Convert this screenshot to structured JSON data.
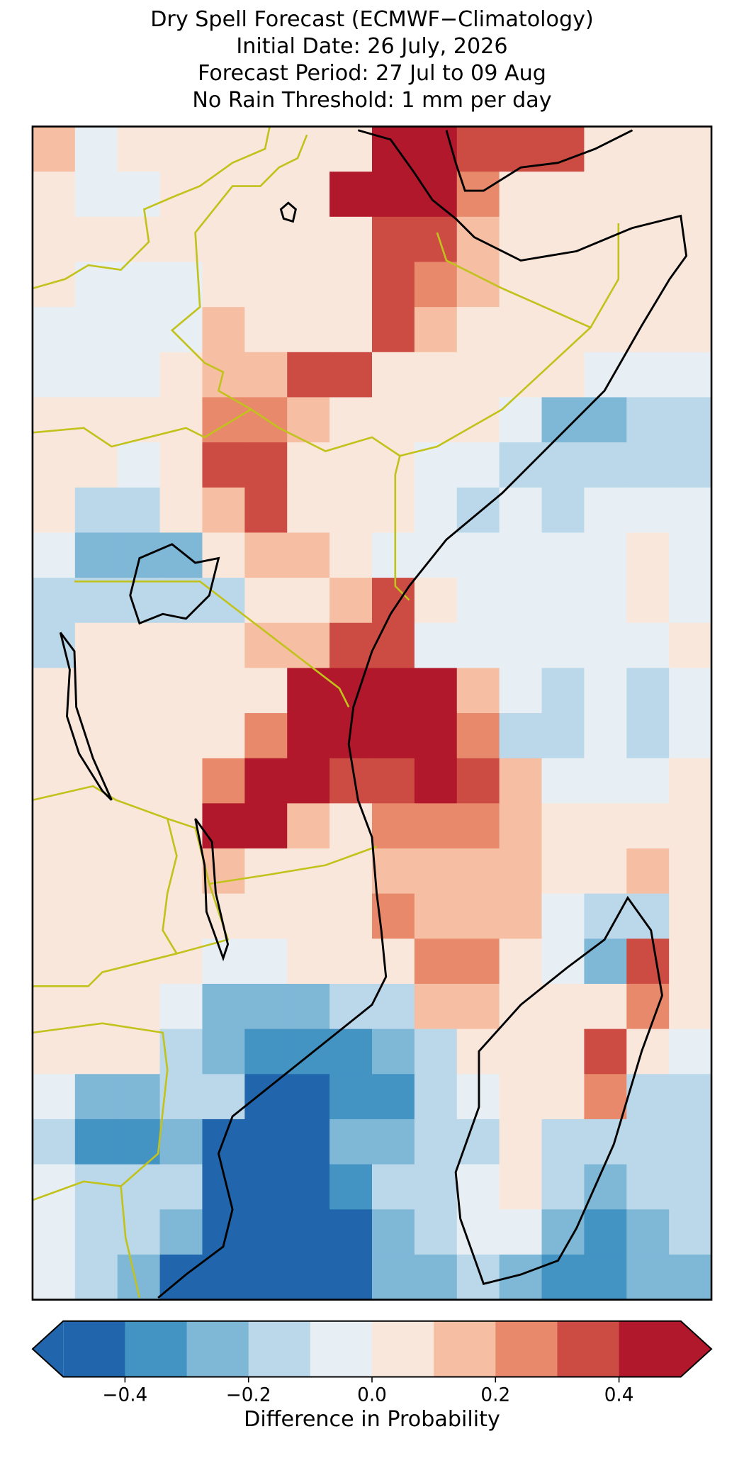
{
  "map": {
    "title": [
      "Dry Spell Forecast (ECMWF−Climatology)",
      "Initial Date: 26 July, 2026",
      "Forecast Period: 27 Jul to 09 Aug",
      "No Rain Threshold: 1 mm per day"
    ],
    "field": [
      [
        0.15,
        -0.05,
        0.05,
        0.05,
        0.05,
        0.05,
        0.05,
        0.05,
        0.45,
        0.45,
        0.35,
        0.35,
        0.35,
        0.05,
        0.05,
        0.05
      ],
      [
        0.05,
        -0.05,
        -0.05,
        0.05,
        0.05,
        0.05,
        0.05,
        0.45,
        0.45,
        0.45,
        0.25,
        0.05,
        0.05,
        0.05,
        0.05,
        0.05
      ],
      [
        0.05,
        0.05,
        0.05,
        0.05,
        0.05,
        0.05,
        0.05,
        0.05,
        0.35,
        0.35,
        0.15,
        0.05,
        0.05,
        0.05,
        0.05,
        0.05
      ],
      [
        0.05,
        -0.05,
        -0.05,
        -0.05,
        0.05,
        0.05,
        0.05,
        0.05,
        0.35,
        0.25,
        0.15,
        0.05,
        0.05,
        0.05,
        0.05,
        0.05
      ],
      [
        -0.05,
        -0.05,
        -0.05,
        -0.05,
        0.15,
        0.05,
        0.05,
        0.05,
        0.35,
        0.15,
        0.05,
        0.05,
        0.05,
        0.05,
        0.05,
        0.05
      ],
      [
        -0.05,
        -0.05,
        -0.05,
        0.05,
        0.15,
        0.15,
        0.35,
        0.35,
        0.05,
        0.05,
        0.05,
        0.05,
        0.05,
        -0.05,
        -0.05,
        -0.05
      ],
      [
        0.05,
        0.05,
        0.05,
        0.05,
        0.25,
        0.25,
        0.15,
        0.05,
        0.05,
        0.05,
        0.05,
        -0.05,
        -0.25,
        -0.25,
        -0.15,
        -0.15
      ],
      [
        0.05,
        0.05,
        -0.05,
        0.05,
        0.35,
        0.35,
        0.05,
        0.05,
        0.05,
        -0.05,
        -0.05,
        -0.15,
        -0.15,
        -0.15,
        -0.15,
        -0.15
      ],
      [
        0.05,
        -0.15,
        -0.15,
        0.05,
        0.15,
        0.35,
        0.05,
        0.05,
        0.05,
        -0.05,
        -0.15,
        -0.05,
        -0.15,
        -0.05,
        -0.05,
        -0.05
      ],
      [
        -0.05,
        -0.25,
        -0.25,
        -0.25,
        0.05,
        0.15,
        0.15,
        0.05,
        -0.05,
        -0.05,
        -0.05,
        -0.05,
        -0.05,
        -0.05,
        0.05,
        -0.05
      ],
      [
        -0.15,
        -0.15,
        -0.15,
        -0.15,
        -0.15,
        0.05,
        0.05,
        0.15,
        0.35,
        0.05,
        -0.05,
        -0.05,
        -0.05,
        -0.05,
        0.05,
        -0.05
      ],
      [
        -0.15,
        0.05,
        0.05,
        0.05,
        0.05,
        0.15,
        0.15,
        0.35,
        0.35,
        -0.05,
        -0.05,
        -0.05,
        -0.05,
        -0.05,
        -0.05,
        0.05
      ],
      [
        0.05,
        0.05,
        0.05,
        0.05,
        0.05,
        0.05,
        0.45,
        0.45,
        0.45,
        0.45,
        0.15,
        -0.05,
        -0.15,
        -0.05,
        -0.15,
        -0.05
      ],
      [
        0.05,
        0.05,
        0.05,
        0.05,
        0.05,
        0.25,
        0.45,
        0.45,
        0.45,
        0.45,
        0.25,
        -0.15,
        -0.15,
        -0.05,
        -0.15,
        -0.05
      ],
      [
        0.05,
        0.05,
        0.05,
        0.05,
        0.25,
        0.45,
        0.45,
        0.35,
        0.35,
        0.45,
        0.35,
        0.15,
        -0.05,
        -0.05,
        -0.05,
        0.05
      ],
      [
        0.05,
        0.05,
        0.05,
        0.05,
        0.45,
        0.45,
        0.15,
        0.05,
        0.25,
        0.25,
        0.25,
        0.15,
        0.05,
        0.05,
        0.05,
        0.05
      ],
      [
        0.05,
        0.05,
        0.05,
        0.05,
        0.15,
        0.05,
        0.05,
        0.05,
        0.15,
        0.15,
        0.15,
        0.15,
        0.05,
        0.05,
        0.15,
        0.05
      ],
      [
        0.05,
        0.05,
        0.05,
        0.05,
        0.05,
        0.05,
        0.05,
        0.05,
        0.25,
        0.15,
        0.15,
        0.15,
        -0.05,
        -0.15,
        -0.15,
        0.05
      ],
      [
        0.05,
        0.05,
        0.05,
        0.05,
        -0.05,
        -0.05,
        0.05,
        0.05,
        0.05,
        0.25,
        0.25,
        0.05,
        -0.05,
        -0.25,
        0.35,
        0.05
      ],
      [
        0.05,
        0.05,
        0.05,
        -0.05,
        -0.25,
        -0.25,
        -0.25,
        -0.15,
        -0.15,
        0.15,
        0.15,
        0.05,
        0.05,
        0.05,
        0.25,
        0.05
      ],
      [
        0.05,
        0.05,
        0.05,
        -0.15,
        -0.25,
        -0.35,
        -0.35,
        -0.35,
        -0.25,
        -0.15,
        0.05,
        0.05,
        0.05,
        0.35,
        0.05,
        -0.05
      ],
      [
        -0.05,
        -0.25,
        -0.25,
        -0.15,
        -0.15,
        -0.45,
        -0.45,
        -0.35,
        -0.35,
        -0.15,
        -0.05,
        0.05,
        0.05,
        0.25,
        -0.15,
        -0.15
      ],
      [
        -0.15,
        -0.35,
        -0.35,
        -0.25,
        -0.45,
        -0.45,
        -0.45,
        -0.25,
        -0.25,
        -0.15,
        -0.15,
        0.05,
        -0.15,
        -0.15,
        -0.15,
        -0.15
      ],
      [
        -0.05,
        -0.15,
        -0.15,
        -0.15,
        -0.45,
        -0.45,
        -0.45,
        -0.35,
        -0.15,
        -0.15,
        -0.05,
        0.05,
        -0.15,
        -0.25,
        -0.15,
        -0.15
      ],
      [
        -0.05,
        -0.15,
        -0.15,
        -0.25,
        -0.45,
        -0.45,
        -0.45,
        -0.45,
        -0.25,
        -0.15,
        -0.05,
        -0.05,
        -0.25,
        -0.35,
        -0.25,
        -0.15
      ],
      [
        -0.05,
        -0.15,
        -0.25,
        -0.45,
        -0.45,
        -0.45,
        -0.45,
        -0.45,
        -0.25,
        -0.25,
        -0.15,
        -0.25,
        -0.35,
        -0.35,
        -0.25,
        -0.25
      ]
    ],
    "colorbar": {
      "bounds": [
        -0.5,
        -0.4,
        -0.3,
        -0.2,
        -0.1,
        0,
        0.1,
        0.2,
        0.3,
        0.4,
        0.5
      ],
      "colors": [
        "#2166ac",
        "#4393c3",
        "#7fb7d7",
        "#bad8e9",
        "#e7eff4",
        "#fae7dc",
        "#f6bfa4",
        "#e8896c",
        "#cc4c44",
        "#b2182b"
      ],
      "extend": "both",
      "ticks": [
        {
          "value": -0.4,
          "label": "−0.4"
        },
        {
          "value": -0.2,
          "label": "−0.2"
        },
        {
          "value": 0,
          "label": "0.0"
        },
        0.2,
        0.4
      ],
      "label": "Difference in Probability"
    }
  }
}
